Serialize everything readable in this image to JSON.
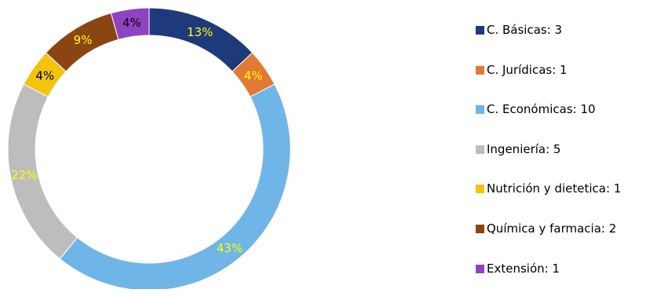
{
  "chart_data": {
    "type": "pie",
    "subtype": "donut",
    "legend_position": "right",
    "categories": [
      "C. Básicas",
      "C. Jurídicas",
      "C. Económicas",
      "Ingeniería",
      "Nutrición y dietetica",
      "Química y farmacia",
      "Extensión"
    ],
    "values": [
      3,
      1,
      10,
      5,
      1,
      2,
      1
    ],
    "percent_labels": [
      "13%",
      "4%",
      "43%",
      "22%",
      "4%",
      "9%",
      "4%"
    ],
    "colors": [
      "#1f3a7a",
      "#e07a35",
      "#6fb5e8",
      "#bdbdbd",
      "#f2c40f",
      "#8b4513",
      "#8e44c0"
    ],
    "label_colors": [
      "#ffff00",
      "#ffff00",
      "#ffff00",
      "#ffff00",
      "#000000",
      "#ffff00",
      "#000000"
    ],
    "legend_entries": [
      "C. Básicas: 3",
      "C. Jurídicas: 1",
      "C. Económicas: 10",
      "Ingeniería: 5",
      "Nutrición y dietetica: 1",
      "Química y farmacia: 2",
      "Extensión: 1"
    ]
  }
}
